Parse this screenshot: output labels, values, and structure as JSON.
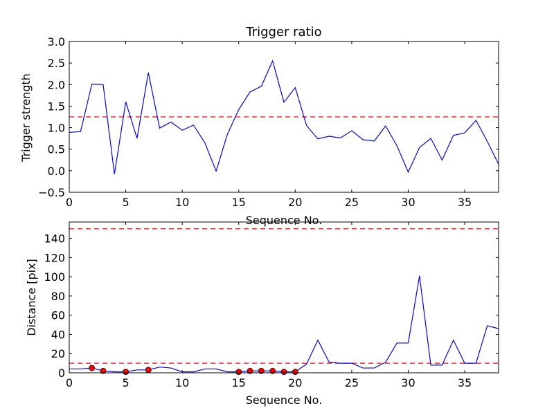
{
  "chart_data": [
    {
      "type": "line",
      "title": "Trigger ratio",
      "xlabel": "Sequence No.",
      "ylabel": "Trigger strength",
      "xlim": [
        0,
        38
      ],
      "ylim": [
        -0.5,
        3.0
      ],
      "xticks": [
        0,
        5,
        10,
        15,
        20,
        25,
        30,
        35
      ],
      "xtick_labels": [
        "0",
        "5",
        "10",
        "15",
        "20",
        "25",
        "30",
        "35"
      ],
      "yticks": [
        -0.5,
        0.0,
        0.5,
        1.0,
        1.5,
        2.0,
        2.5,
        3.0
      ],
      "ytick_labels": [
        "−0.5",
        "0.0",
        "0.5",
        "1.0",
        "1.5",
        "2.0",
        "2.5",
        "3.0"
      ],
      "grid": false,
      "series": [
        {
          "color": "#0000ff",
          "style": "solid",
          "x": [
            0,
            1,
            2,
            3,
            4,
            5,
            6,
            7,
            8,
            9,
            10,
            11,
            12,
            13,
            14,
            15,
            16,
            17,
            18,
            19,
            20,
            21,
            22,
            23,
            24,
            25,
            26,
            27,
            28,
            29,
            30,
            31,
            32,
            33,
            34,
            35,
            36,
            37,
            38
          ],
          "y": [
            0.89,
            0.91,
            2.01,
            2.0,
            -0.08,
            1.6,
            0.75,
            2.28,
            0.99,
            1.13,
            0.94,
            1.06,
            0.65,
            -0.01,
            0.85,
            1.42,
            1.83,
            1.96,
            2.55,
            1.59,
            1.93,
            1.05,
            0.74,
            0.8,
            0.76,
            0.93,
            0.72,
            0.69,
            1.04,
            0.58,
            -0.03,
            0.54,
            0.75,
            0.25,
            0.82,
            0.88,
            1.17,
            0.68,
            0.15
          ]
        }
      ],
      "hlines": [
        {
          "y": 1.25,
          "color": "#ff0000",
          "style": "dashed"
        }
      ]
    },
    {
      "type": "line",
      "title": "",
      "xlabel": "Sequence No.",
      "ylabel": "Distance [pix]",
      "xlim": [
        0,
        38
      ],
      "ylim": [
        0,
        157
      ],
      "xticks": [
        0,
        5,
        10,
        15,
        20,
        25,
        30,
        35
      ],
      "xtick_labels": [
        "0",
        "5",
        "10",
        "15",
        "20",
        "25",
        "30",
        "35"
      ],
      "yticks": [
        0,
        20,
        40,
        60,
        80,
        100,
        120,
        140
      ],
      "ytick_labels": [
        "0",
        "20",
        "40",
        "60",
        "80",
        "100",
        "120",
        "140"
      ],
      "grid": false,
      "series": [
        {
          "color": "#0000ff",
          "style": "solid",
          "x": [
            0,
            1,
            2,
            3,
            4,
            5,
            6,
            7,
            8,
            9,
            10,
            11,
            12,
            13,
            14,
            15,
            16,
            17,
            18,
            19,
            20,
            21,
            22,
            23,
            24,
            25,
            26,
            27,
            28,
            29,
            30,
            31,
            32,
            33,
            34,
            35,
            36,
            37,
            38
          ],
          "y": [
            4,
            4,
            5,
            2,
            1,
            1,
            3,
            3,
            6,
            5,
            1,
            1,
            4,
            4,
            1,
            1,
            2,
            2,
            2,
            1,
            1,
            9,
            34,
            11,
            10,
            10,
            5,
            5,
            11,
            31,
            31,
            101,
            8,
            8,
            34,
            10,
            10,
            49,
            46
          ]
        }
      ],
      "markers": {
        "color": "#ff0000",
        "x": [
          2,
          3,
          5,
          7,
          15,
          16,
          17,
          18,
          19,
          20
        ],
        "y": [
          5,
          2,
          1,
          3,
          1,
          2,
          2,
          2,
          1,
          1
        ]
      },
      "hlines": [
        {
          "y": 150,
          "color": "#ff0000",
          "style": "dashed"
        },
        {
          "y": 10,
          "color": "#ff0000",
          "style": "dashed"
        }
      ]
    }
  ]
}
